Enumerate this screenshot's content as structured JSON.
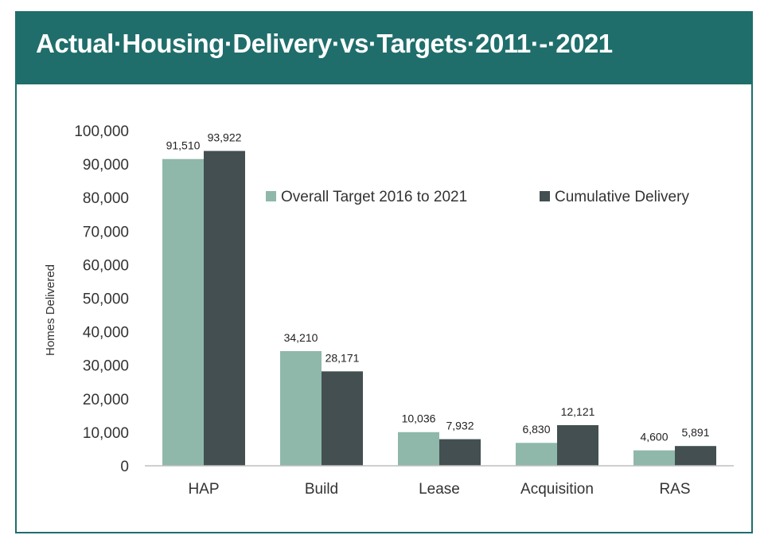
{
  "header": {
    "title": "Actual·Housing·Delivery·vs·Targets·2011·-·2021"
  },
  "colors": {
    "header_bg": "#1f6e6b",
    "target": "#8fb8aa",
    "delivery": "#434f51"
  },
  "chart_data": {
    "type": "bar",
    "title": "",
    "xlabel": "",
    "ylabel": "Homes Delivered",
    "ylim": [
      0,
      100000
    ],
    "yticks": [
      0,
      10000,
      20000,
      30000,
      40000,
      50000,
      60000,
      70000,
      80000,
      90000,
      100000
    ],
    "ytick_labels": [
      "0",
      "10,000",
      "20,000",
      "30,000",
      "40,000",
      "50,000",
      "60,000",
      "70,000",
      "80,000",
      "90,000",
      "100,000"
    ],
    "grid": false,
    "legend_position": "top-right",
    "categories": [
      "HAP",
      "Build",
      "Lease",
      "Acquisition",
      "RAS"
    ],
    "series": [
      {
        "name": "Overall Target 2016 to 2021",
        "color": "#8fb8aa",
        "values": [
          91510,
          34210,
          10036,
          6830,
          4600
        ],
        "labels": [
          "91,510",
          "34,210",
          "10,036",
          "6,830",
          "4,600"
        ]
      },
      {
        "name": "Cumulative Delivery",
        "color": "#434f51",
        "values": [
          93922,
          28171,
          7932,
          12121,
          5891
        ],
        "labels": [
          "93,922",
          "28,171",
          "7,932",
          "12,121",
          "5,891"
        ]
      }
    ]
  }
}
